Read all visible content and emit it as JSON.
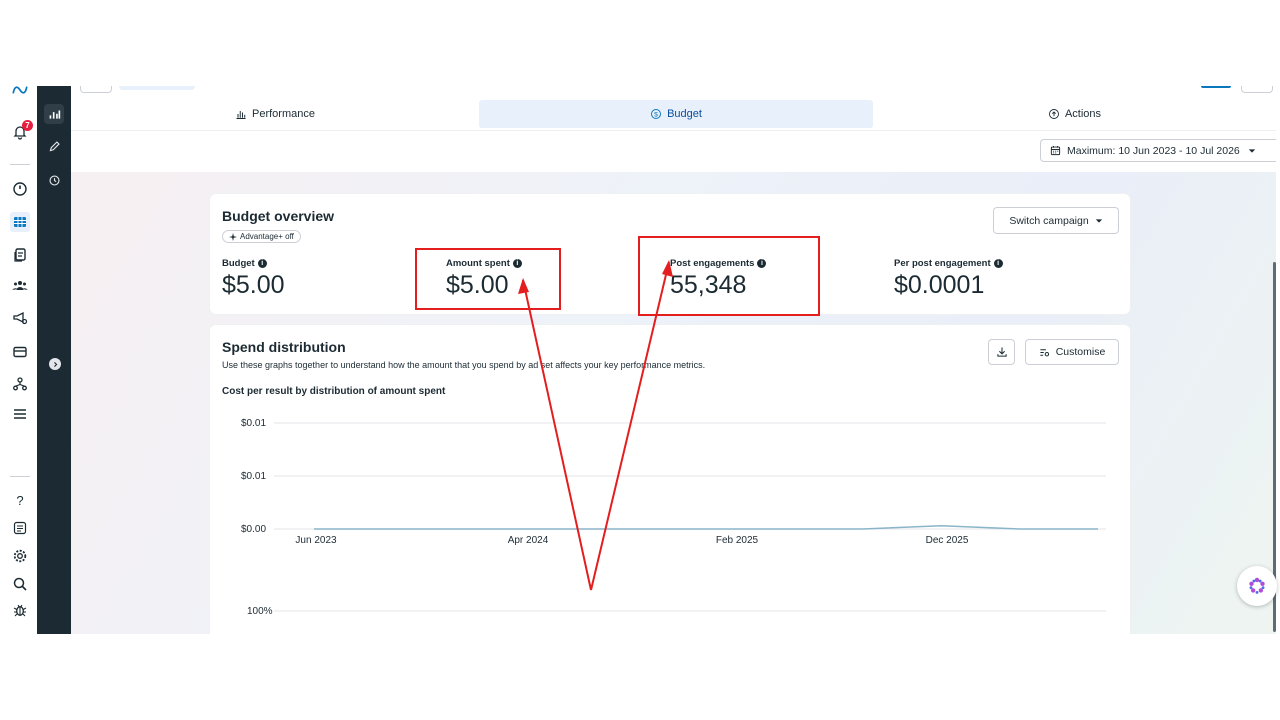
{
  "nav": {
    "notification_count": "7"
  },
  "tabs": [
    {
      "label": "Performance",
      "icon": "bar-chart-icon"
    },
    {
      "label": "Budget",
      "icon": "dollar-circle-icon"
    },
    {
      "label": "Actions",
      "icon": "cursor-click-icon"
    }
  ],
  "date_range": {
    "label": "Maximum: 10 Jun 2023 - 10 Jul 2026"
  },
  "budget_overview": {
    "title": "Budget overview",
    "badge": "Advantage+ off",
    "switch_label": "Switch campaign",
    "metrics": [
      {
        "label": "Budget",
        "value": "$5.00"
      },
      {
        "label": "Amount spent",
        "value": "$5.00"
      },
      {
        "label": "Post engagements",
        "value": "55,348"
      },
      {
        "label": "Per post engagement",
        "value": "$0.0001"
      }
    ]
  },
  "spend_distribution": {
    "title": "Spend distribution",
    "description": "Use these graphs together to understand how the amount that you spend by ad set affects your key performance metrics.",
    "chart_title": "Cost per result by distribution of amount spent",
    "customise_label": "Customise"
  },
  "chart_data": {
    "type": "line",
    "y_tick_labels": [
      "$0.01",
      "$0.01",
      "$0.00"
    ],
    "x_tick_labels": [
      "Jun 2023",
      "Apr 2024",
      "Feb 2025",
      "Dec 2025"
    ],
    "second_axis_label": "100%",
    "series": [
      {
        "values": [
          0,
          0,
          0,
          0,
          0,
          0,
          0,
          0,
          0.0003,
          0,
          0
        ]
      }
    ],
    "grid": true,
    "line_color": "#8ab4c8"
  },
  "colors": {
    "accent": "#0a78be",
    "annotation": "#e41e1e",
    "dark_rail": "#1c2b33",
    "tab_active": "#e7f0fb"
  }
}
